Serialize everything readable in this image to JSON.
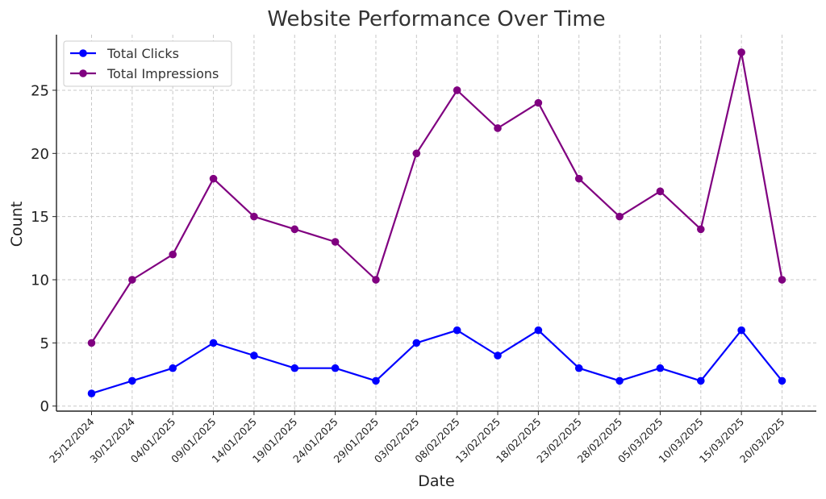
{
  "chart_data": {
    "type": "line",
    "title": "Website Performance Over Time",
    "xlabel": "Date",
    "ylabel": "Count",
    "x": [
      "25/12/2024",
      "30/12/2024",
      "04/01/2025",
      "09/01/2025",
      "14/01/2025",
      "19/01/2025",
      "24/01/2025",
      "29/01/2025",
      "03/02/2025",
      "08/02/2025",
      "13/02/2025",
      "18/02/2025",
      "23/02/2025",
      "28/02/2025",
      "05/03/2025",
      "10/03/2025",
      "15/03/2025",
      "20/03/2025"
    ],
    "series": [
      {
        "name": "Total Clicks",
        "color": "#0000ff",
        "values": [
          1,
          2,
          3,
          5,
          4,
          3,
          3,
          2,
          5,
          6,
          4,
          6,
          3,
          2,
          3,
          2,
          6,
          2
        ]
      },
      {
        "name": "Total Impressions",
        "color": "#800080",
        "values": [
          5,
          10,
          12,
          18,
          15,
          14,
          13,
          10,
          20,
          25,
          22,
          24,
          18,
          15,
          17,
          14,
          28,
          10
        ]
      }
    ],
    "yticks": [
      0,
      5,
      10,
      15,
      20,
      25
    ],
    "ylim": [
      -0.4,
      29.4
    ],
    "grid": true,
    "legend_position": "top-left"
  }
}
